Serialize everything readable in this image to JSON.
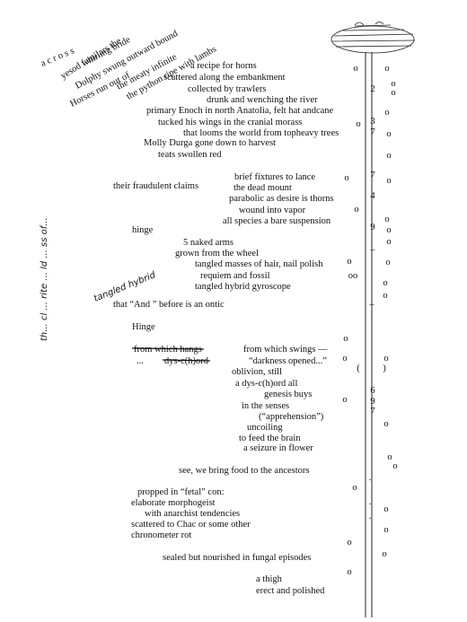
{
  "diagonal": [
    "a c r o s s",
    "yesod familars the",
    "whirling bride",
    "Dolphy swung outward bound",
    "Horses run out of",
    "the meaty infinite",
    "the python ripe with lambs"
  ],
  "vertical_note": "th...  cl ...  rite ...  ld ...  ss of...",
  "handwritten": "tangled hybrid",
  "lines": [
    "a recipe for horns",
    "scattered along the embankment",
    "collected by trawlers",
    "drunk and wenching the river",
    "primary Enoch in north Anatolia, felt hat andcane",
    "tucked his wings in the cranial morass",
    "that looms the world from topheavy trees",
    "Molly Durga gone down to harvest",
    "teats swollen red",
    "brief fixtures to lance",
    "their fraudulent claims",
    "the dead mount",
    "parabolic as desire is thorns",
    "wound into vapor",
    "all species a bare suspension",
    "hinge",
    "5 naked arms",
    "grown from the wheel",
    "tangled masses of hair, nail polish",
    "requiem and fossil",
    "tangled hybrid gyroscope",
    "that “And ” before is an ontic",
    "Hinge",
    "from which hangs",
    "from which swings —",
    "...",
    "dys-c(h)ord",
    "“darkness opened...”",
    "oblivion, still",
    "a   dys-c(h)ord all",
    "genesis buys",
    "in the     senses",
    "(“apprehension”)",
    "uncoiling",
    "to feed the brain",
    "a seizure in flower",
    "see, we bring food to the ancestors",
    "propped in “fetal” con:",
    "elaborate morphogeist",
    "with anarchist tendencies",
    "scattered to Chac or some other",
    "chronometer rot",
    "sealed but nourished in fungal episodes",
    "a thigh",
    "erect and polished"
  ],
  "margin": [
    "o",
    "o",
    "o",
    "2",
    "o",
    "o",
    "3",
    "o",
    "7",
    "o",
    "o",
    "7",
    "o",
    "o",
    "4",
    "o",
    "o",
    "9",
    "o",
    "o",
    "–",
    "o",
    "o",
    "oo",
    "o",
    "o",
    "–",
    "|",
    "o",
    "o",
    "o",
    "(",
    ")",
    "6",
    "o",
    "9",
    "7",
    "o",
    "o",
    "o",
    ".",
    "o",
    ".",
    "o",
    ".",
    "o",
    "o",
    "o",
    "o"
  ]
}
